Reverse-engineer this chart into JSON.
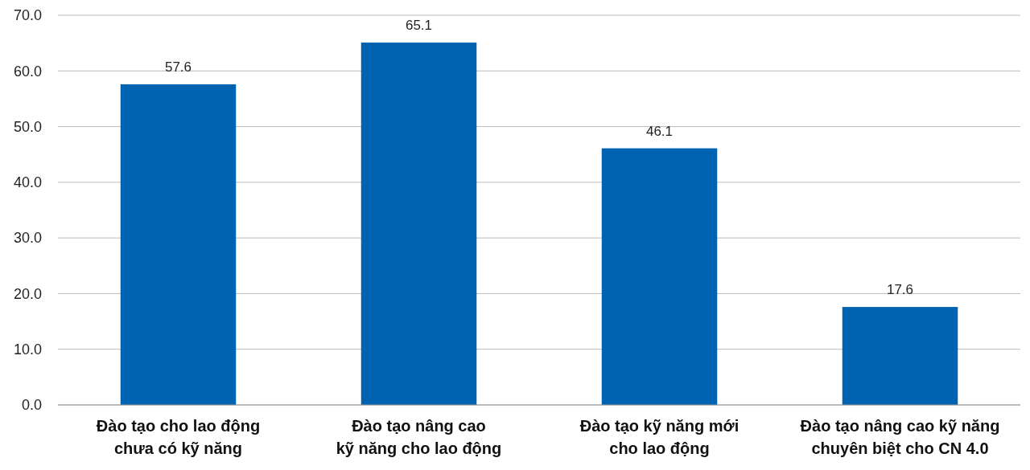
{
  "chart_data": {
    "type": "bar",
    "categories": [
      "Đào tạo cho lao động\nchưa có kỹ năng",
      "Đào tạo nâng cao\nkỹ năng cho lao động",
      "Đào tạo kỹ năng mới\ncho lao động",
      "Đào tạo nâng cao kỹ năng\nchuyên biệt cho CN 4.0"
    ],
    "values": [
      57.6,
      65.1,
      46.1,
      17.6
    ],
    "color": "#0063b2",
    "ylim": [
      0,
      70
    ],
    "yticks": [
      {
        "value": 0,
        "label": "0.0"
      },
      {
        "value": 10,
        "label": "10.0"
      },
      {
        "value": 20,
        "label": "20.0"
      },
      {
        "value": 30,
        "label": "30.0"
      },
      {
        "value": 40,
        "label": "40.0"
      },
      {
        "value": 50,
        "label": "50.0"
      },
      {
        "value": 60,
        "label": "60.0"
      },
      {
        "value": 70,
        "label": "70.0"
      }
    ],
    "grid": "y",
    "data_labels": true
  }
}
